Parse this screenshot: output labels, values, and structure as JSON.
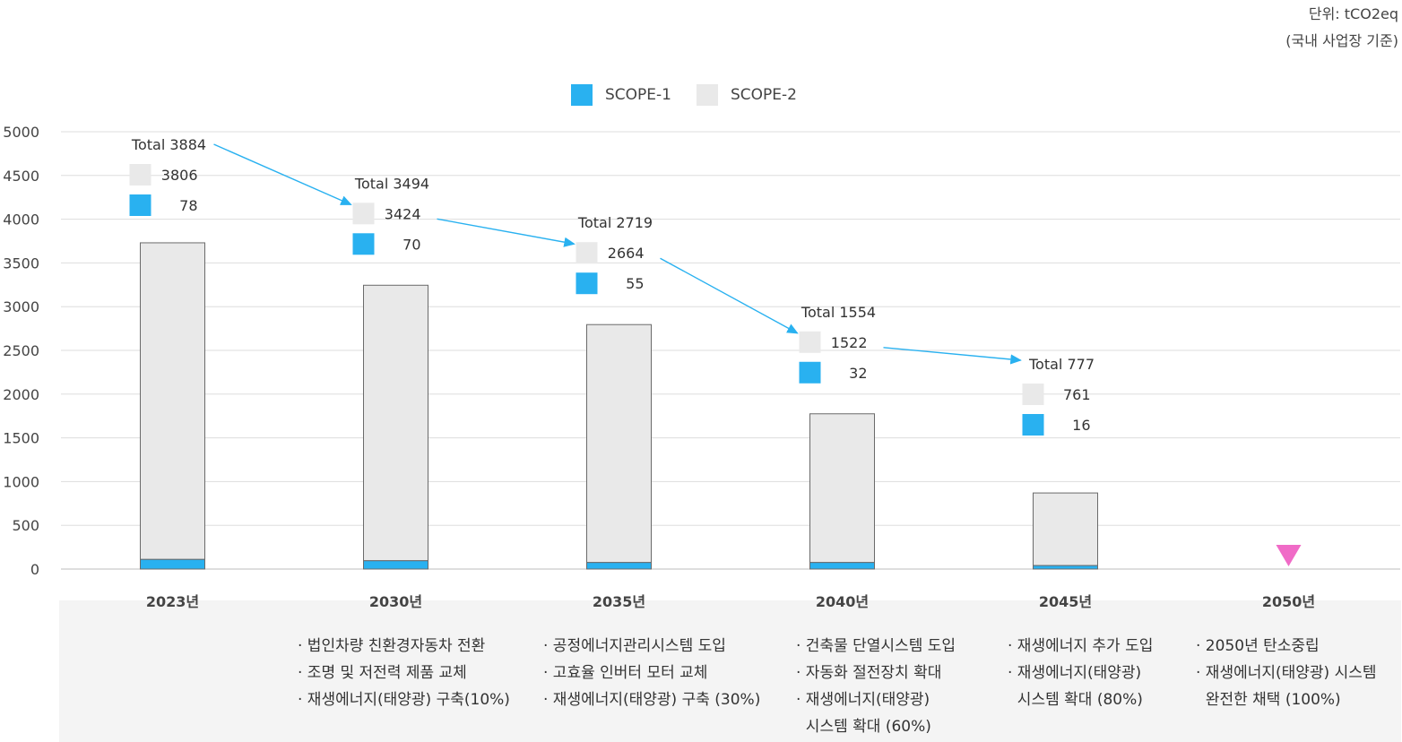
{
  "unit_label": "단위: tCO2eq",
  "scope_label": "(국내 사업장 기준)",
  "legend": [
    {
      "name": "SCOPE-1",
      "color": "#29b1f0"
    },
    {
      "name": "SCOPE-2",
      "color": "#e9e9e9"
    }
  ],
  "chart_data": {
    "type": "bar",
    "stacked": true,
    "categories": [
      "2023년",
      "2030년",
      "2035년",
      "2040년",
      "2045년",
      "2050년"
    ],
    "series": [
      {
        "name": "SCOPE-1",
        "values": [
          78,
          70,
          55,
          32,
          16,
          null
        ]
      },
      {
        "name": "SCOPE-2",
        "values": [
          3806,
          3424,
          2664,
          1522,
          761,
          null
        ]
      }
    ],
    "totals": [
      3884,
      3494,
      2719,
      1554,
      777,
      null
    ],
    "total_labels": [
      "Total 3884",
      "Total 3494",
      "Total 2719",
      "Total 1554",
      "Total 777",
      ""
    ],
    "bar_values_visual": [
      {
        "scope1": 110,
        "scope2": 3620
      },
      {
        "scope1": 95,
        "scope2": 3150
      },
      {
        "scope1": 75,
        "scope2": 2720
      },
      {
        "scope1": 75,
        "scope2": 1700
      },
      {
        "scope1": 40,
        "scope2": 830
      },
      null
    ],
    "yticks": [
      0,
      500,
      1000,
      1500,
      2000,
      2500,
      3000,
      3500,
      4000,
      4500,
      5000
    ],
    "ylim": [
      0,
      5000
    ],
    "grid": true,
    "legend_position": "top-center",
    "target_marker": {
      "category": "2050년",
      "shape": "down-triangle",
      "color": "#f06bc7"
    },
    "trend_arrow_color": "#29b1f0"
  },
  "notes": [
    [],
    [
      "· 법인차량 친환경자동차 전환",
      "· 조명 및 저전력 제품 교체",
      "· 재생에너지(태양광) 구축(10%)"
    ],
    [
      "· 공정에너지관리시스템 도입",
      "· 고효율 인버터 모터 교체",
      "· 재생에너지(태양광) 구축 (30%)"
    ],
    [
      "· 건축물 단열시스템 도입",
      "· 자동화 절전장치 확대",
      "· 재생에너지(태양광)",
      "  시스템 확대 (60%)"
    ],
    [
      "· 재생에너지 추가 도입",
      "· 재생에너지(태양광)",
      "  시스템 확대 (80%)"
    ],
    [
      "· 2050년 탄소중립",
      "· 재생에너지(태양광) 시스템",
      "  완전한 채택 (100%)"
    ]
  ]
}
